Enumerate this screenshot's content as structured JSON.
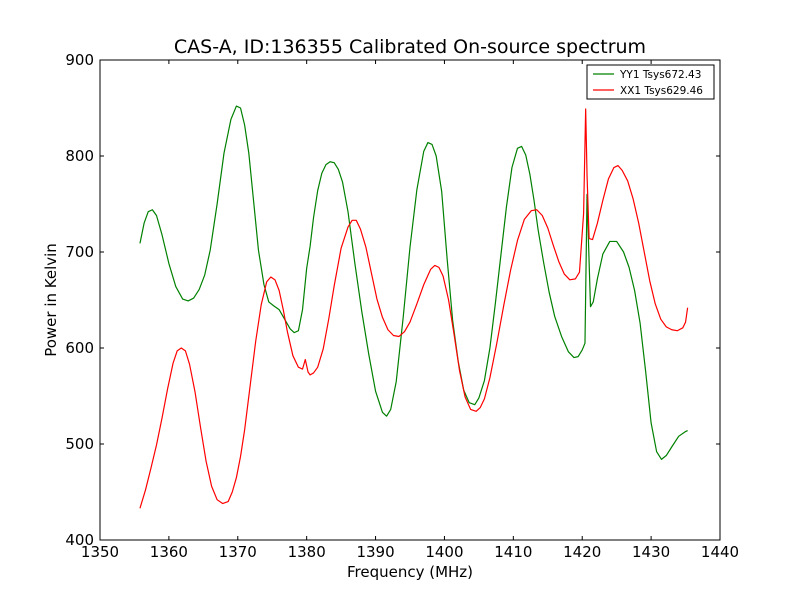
{
  "chart_data": {
    "type": "line",
    "title": "CAS-A, ID:136355 Calibrated On-source spectrum",
    "xlabel": "Frequency (MHz)",
    "ylabel": "Power in Kelvin",
    "xlim": [
      1350,
      1440
    ],
    "ylim": [
      400,
      900
    ],
    "xticks": [
      1350,
      1360,
      1370,
      1380,
      1390,
      1400,
      1410,
      1420,
      1430,
      1440
    ],
    "yticks": [
      400,
      500,
      600,
      700,
      800,
      900
    ],
    "xtick_labels": [
      "1350",
      "1360",
      "1370",
      "1380",
      "1390",
      "1400",
      "1410",
      "1420",
      "1430",
      "1440"
    ],
    "ytick_labels": [
      "400",
      "500",
      "600",
      "700",
      "800",
      "900"
    ],
    "grid": false,
    "legend_position": "top-right",
    "series": [
      {
        "name": "YY1 Tsys672.43",
        "color": "#008000",
        "x": [
          1355.8,
          1356.4,
          1357.0,
          1357.6,
          1358.2,
          1359.0,
          1360.0,
          1361.0,
          1362.0,
          1362.8,
          1363.6,
          1364.4,
          1365.2,
          1366.0,
          1367.0,
          1368.0,
          1369.0,
          1369.8,
          1370.4,
          1371.0,
          1371.6,
          1372.2,
          1373.0,
          1373.8,
          1374.5,
          1375.2,
          1376.0,
          1376.8,
          1377.6,
          1378.2,
          1378.8,
          1379.4,
          1380.0,
          1380.5,
          1381.0,
          1381.6,
          1382.2,
          1382.8,
          1383.4,
          1384.0,
          1384.6,
          1385.2,
          1386.0,
          1387.0,
          1388.0,
          1389.0,
          1390.0,
          1391.0,
          1391.6,
          1392.2,
          1393.0,
          1394.0,
          1395.0,
          1396.0,
          1397.0,
          1397.6,
          1398.2,
          1398.8,
          1399.6,
          1400.4,
          1401.2,
          1402.0,
          1402.8,
          1403.6,
          1404.4,
          1405.0,
          1405.8,
          1406.6,
          1407.4,
          1408.2,
          1409.0,
          1409.8,
          1410.6,
          1411.2,
          1411.8,
          1412.4,
          1413.0,
          1413.6,
          1414.4,
          1415.2,
          1416.0,
          1417.0,
          1418.0,
          1418.8,
          1419.4,
          1420.0,
          1420.4,
          1420.7,
          1421.2,
          1421.6,
          1422.2,
          1423.0,
          1424.0,
          1425.0,
          1426.0,
          1426.8,
          1427.6,
          1428.4,
          1429.2,
          1430.0,
          1430.8,
          1431.5,
          1432.2,
          1433.0,
          1434.0,
          1435.0,
          1435.3
        ],
        "values": [
          709,
          730,
          742,
          744,
          738,
          718,
          688,
          664,
          651,
          649,
          652,
          661,
          676,
          702,
          750,
          803,
          838,
          852,
          850,
          832,
          803,
          760,
          702,
          666,
          648,
          644,
          640,
          630,
          620,
          616,
          618,
          640,
          683,
          706,
          736,
          764,
          782,
          791,
          794,
          793,
          786,
          773,
          742,
          688,
          638,
          594,
          555,
          533,
          529,
          536,
          565,
          631,
          705,
          765,
          805,
          814,
          812,
          800,
          763,
          692,
          628,
          586,
          556,
          543,
          541,
          548,
          566,
          600,
          647,
          697,
          747,
          788,
          808,
          810,
          801,
          781,
          754,
          723,
          689,
          658,
          633,
          612,
          596,
          590,
          591,
          598,
          605,
          760,
          643,
          648,
          672,
          698,
          711,
          711,
          700,
          684,
          660,
          626,
          576,
          522,
          492,
          484,
          488,
          497,
          508,
          513,
          514
        ]
      },
      {
        "name": "XX1 Tsys629.46",
        "color": "#ff0000",
        "x": [
          1355.8,
          1356.6,
          1357.4,
          1358.2,
          1359.0,
          1359.8,
          1360.6,
          1361.2,
          1361.8,
          1362.4,
          1363.0,
          1363.8,
          1364.6,
          1365.4,
          1366.2,
          1367.0,
          1367.8,
          1368.6,
          1369.2,
          1369.8,
          1370.4,
          1371.0,
          1371.8,
          1372.6,
          1373.4,
          1374.2,
          1374.8,
          1375.4,
          1376.0,
          1376.6,
          1377.2,
          1378.0,
          1378.8,
          1379.4,
          1379.8,
          1380.2,
          1380.5,
          1381.0,
          1381.6,
          1382.4,
          1383.2,
          1384.0,
          1385.0,
          1386.0,
          1386.6,
          1387.2,
          1387.8,
          1388.6,
          1389.4,
          1390.2,
          1391.0,
          1391.8,
          1392.6,
          1393.4,
          1394.2,
          1395.0,
          1396.0,
          1397.0,
          1398.0,
          1398.6,
          1399.2,
          1399.8,
          1400.6,
          1401.4,
          1402.2,
          1403.0,
          1403.8,
          1404.6,
          1405.2,
          1405.8,
          1406.6,
          1407.6,
          1408.6,
          1409.6,
          1410.6,
          1411.6,
          1412.6,
          1413.4,
          1414.2,
          1415.0,
          1415.8,
          1416.6,
          1417.4,
          1418.2,
          1419.0,
          1419.6,
          1420.2,
          1420.5,
          1420.7,
          1421.0,
          1421.5,
          1422.2,
          1423.0,
          1423.8,
          1424.6,
          1425.2,
          1425.8,
          1426.6,
          1427.4,
          1428.2,
          1429.0,
          1429.8,
          1430.6,
          1431.4,
          1432.2,
          1433.0,
          1433.8,
          1434.6,
          1435.0,
          1435.3
        ],
        "values": [
          433,
          452,
          475,
          499,
          527,
          557,
          584,
          597,
          600,
          597,
          583,
          554,
          517,
          482,
          456,
          442,
          438,
          440,
          450,
          465,
          487,
          515,
          561,
          607,
          645,
          669,
          674,
          671,
          660,
          640,
          617,
          592,
          580,
          578,
          588,
          575,
          572,
          574,
          580,
          599,
          630,
          665,
          704,
          726,
          733,
          733,
          724,
          705,
          678,
          651,
          632,
          619,
          613,
          612,
          617,
          627,
          646,
          666,
          682,
          686,
          684,
          675,
          650,
          614,
          576,
          549,
          536,
          534,
          538,
          547,
          569,
          605,
          644,
          681,
          712,
          734,
          743,
          744,
          738,
          725,
          707,
          690,
          677,
          671,
          672,
          679,
          740,
          849,
          780,
          714,
          713,
          730,
          754,
          776,
          788,
          790,
          785,
          774,
          755,
          730,
          700,
          670,
          646,
          630,
          622,
          619,
          618,
          621,
          627,
          642
        ]
      }
    ]
  }
}
